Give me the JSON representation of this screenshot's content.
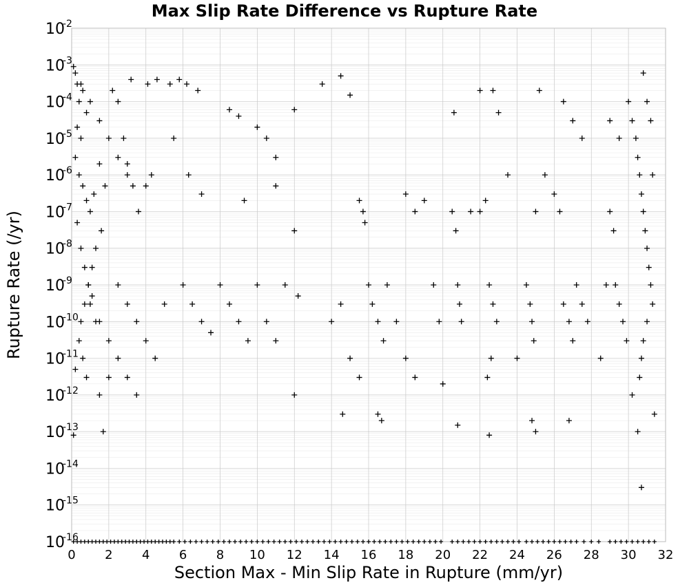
{
  "chart_data": {
    "type": "scatter",
    "title": "Max Slip Rate Difference vs Rupture Rate",
    "xlabel": "Section Max - Min Slip Rate in Rupture (mm/yr)",
    "ylabel": "Rupture Rate (/yr)",
    "xlim": [
      0,
      32
    ],
    "ylim": [
      1e-16,
      0.01
    ],
    "yscale": "log",
    "marker": "plus",
    "marker_color": "#000000",
    "grid": true,
    "x_ticks": [
      "0",
      "2",
      "4",
      "6",
      "8",
      "10",
      "12",
      "14",
      "16",
      "18",
      "20",
      "22",
      "24",
      "26",
      "28",
      "30",
      "32"
    ],
    "y_ticks": [
      {
        "base": "10",
        "exp": "-2"
      },
      {
        "base": "10",
        "exp": "-3"
      },
      {
        "base": "10",
        "exp": "-4"
      },
      {
        "base": "10",
        "exp": "-5"
      },
      {
        "base": "10",
        "exp": "-6"
      },
      {
        "base": "10",
        "exp": "-7"
      },
      {
        "base": "10",
        "exp": "-8"
      },
      {
        "base": "10",
        "exp": "-9"
      },
      {
        "base": "10",
        "exp": "-10"
      },
      {
        "base": "10",
        "exp": "-11"
      },
      {
        "base": "10",
        "exp": "-12"
      },
      {
        "base": "10",
        "exp": "-13"
      },
      {
        "base": "10",
        "exp": "-14"
      },
      {
        "base": "10",
        "exp": "-15"
      },
      {
        "base": "10",
        "exp": "-16"
      }
    ],
    "points": [
      [
        0.1,
        0.0009
      ],
      [
        0.2,
        0.0006
      ],
      [
        0.3,
        0.0003
      ],
      [
        0.4,
        0.0001
      ],
      [
        0.6,
        0.0002
      ],
      [
        0.8,
        5e-05
      ],
      [
        0.3,
        2e-05
      ],
      [
        0.5,
        1e-05
      ],
      [
        0.2,
        3e-06
      ],
      [
        0.4,
        1e-06
      ],
      [
        0.6,
        5e-07
      ],
      [
        0.8,
        2e-07
      ],
      [
        1.0,
        1e-07
      ],
      [
        1.2,
        3e-07
      ],
      [
        1.5,
        2e-06
      ],
      [
        1.8,
        5e-07
      ],
      [
        0.3,
        5e-08
      ],
      [
        0.5,
        1e-08
      ],
      [
        0.7,
        3e-09
      ],
      [
        0.9,
        1e-09
      ],
      [
        1.1,
        5e-10
      ],
      [
        1.3,
        1e-10
      ],
      [
        0.4,
        3e-11
      ],
      [
        0.6,
        1e-11
      ],
      [
        0.8,
        3e-12
      ],
      [
        0.2,
        5e-12
      ],
      [
        0.1,
        8e-14
      ],
      [
        1.5,
        1e-12
      ],
      [
        1.7,
        1e-13
      ],
      [
        2.0,
        3e-12
      ],
      [
        2.2,
        0.0002
      ],
      [
        2.5,
        0.0001
      ],
      [
        2.8,
        1e-05
      ],
      [
        3.0,
        2e-06
      ],
      [
        3.3,
        5e-07
      ],
      [
        3.6,
        1e-07
      ],
      [
        4.0,
        5e-07
      ],
      [
        4.3,
        1e-06
      ],
      [
        2.5,
        1e-09
      ],
      [
        3.0,
        3e-10
      ],
      [
        3.5,
        1e-10
      ],
      [
        4.0,
        3e-11
      ],
      [
        4.5,
        1e-11
      ],
      [
        5.0,
        3e-10
      ],
      [
        3.2,
        0.0004
      ],
      [
        4.1,
        0.0003
      ],
      [
        4.6,
        0.0004
      ],
      [
        5.3,
        0.0003
      ],
      [
        5.8,
        0.0004
      ],
      [
        6.2,
        0.0003
      ],
      [
        6.8,
        0.0002
      ],
      [
        5.5,
        1e-05
      ],
      [
        6.3,
        1e-06
      ],
      [
        7.0,
        3e-07
      ],
      [
        6.0,
        1e-09
      ],
      [
        6.5,
        3e-10
      ],
      [
        7.0,
        1e-10
      ],
      [
        7.5,
        5e-11
      ],
      [
        8.0,
        1e-09
      ],
      [
        8.5,
        3e-10
      ],
      [
        9.0,
        1e-10
      ],
      [
        9.3,
        2e-07
      ],
      [
        9.5,
        3e-11
      ],
      [
        10.0,
        1e-09
      ],
      [
        10.5,
        1e-10
      ],
      [
        11.0,
        5e-07
      ],
      [
        11.0,
        3e-11
      ],
      [
        11.5,
        1e-09
      ],
      [
        12.0,
        3e-08
      ],
      [
        12.2,
        5e-10
      ],
      [
        12.0,
        1e-12
      ],
      [
        8.5,
        6e-05
      ],
      [
        9.0,
        4e-05
      ],
      [
        10.0,
        2e-05
      ],
      [
        10.5,
        1e-05
      ],
      [
        11.0,
        3e-06
      ],
      [
        12.0,
        6e-05
      ],
      [
        13.5,
        0.0003
      ],
      [
        14.5,
        0.0005
      ],
      [
        15.0,
        0.00015
      ],
      [
        15.5,
        2e-07
      ],
      [
        15.7,
        1e-07
      ],
      [
        15.8,
        5e-08
      ],
      [
        16.0,
        1e-09
      ],
      [
        16.2,
        3e-10
      ],
      [
        16.5,
        1e-10
      ],
      [
        16.8,
        3e-11
      ],
      [
        14.0,
        1e-10
      ],
      [
        14.5,
        3e-10
      ],
      [
        15.0,
        1e-11
      ],
      [
        15.5,
        3e-12
      ],
      [
        14.6,
        3e-13
      ],
      [
        16.5,
        3e-13
      ],
      [
        16.7,
        2e-13
      ],
      [
        17.0,
        1e-09
      ],
      [
        17.5,
        1e-10
      ],
      [
        18.0,
        3e-07
      ],
      [
        18.5,
        1e-07
      ],
      [
        19.0,
        2e-07
      ],
      [
        19.5,
        1e-09
      ],
      [
        18.0,
        1e-11
      ],
      [
        18.5,
        3e-12
      ],
      [
        19.8,
        1e-10
      ],
      [
        20.0,
        2e-12
      ],
      [
        20.5,
        1e-07
      ],
      [
        20.7,
        3e-08
      ],
      [
        20.8,
        1e-09
      ],
      [
        20.9,
        3e-10
      ],
      [
        21.0,
        1e-10
      ],
      [
        20.8,
        1.5e-13
      ],
      [
        20.6,
        5e-05
      ],
      [
        21.5,
        1e-07
      ],
      [
        22.0,
        1e-07
      ],
      [
        22.3,
        2e-07
      ],
      [
        22.5,
        1e-09
      ],
      [
        22.7,
        3e-10
      ],
      [
        22.9,
        1e-10
      ],
      [
        22.6,
        1e-11
      ],
      [
        22.4,
        3e-12
      ],
      [
        22.5,
        8e-14
      ],
      [
        22.0,
        0.0002
      ],
      [
        22.7,
        0.0002
      ],
      [
        23.0,
        5e-05
      ],
      [
        23.5,
        1e-06
      ],
      [
        24.0,
        1e-11
      ],
      [
        24.5,
        1e-09
      ],
      [
        24.7,
        3e-10
      ],
      [
        24.8,
        1e-10
      ],
      [
        24.9,
        3e-11
      ],
      [
        25.0,
        1e-07
      ],
      [
        25.2,
        0.0002
      ],
      [
        24.8,
        2e-13
      ],
      [
        25.0,
        1e-13
      ],
      [
        25.5,
        1e-06
      ],
      [
        26.0,
        3e-07
      ],
      [
        26.3,
        1e-07
      ],
      [
        26.5,
        3e-10
      ],
      [
        26.8,
        1e-10
      ],
      [
        27.0,
        3e-11
      ],
      [
        27.2,
        1e-09
      ],
      [
        27.5,
        3e-10
      ],
      [
        27.8,
        1e-10
      ],
      [
        26.5,
        0.0001
      ],
      [
        27.0,
        3e-05
      ],
      [
        27.5,
        1e-05
      ],
      [
        26.8,
        2e-13
      ],
      [
        28.5,
        1e-11
      ],
      [
        28.8,
        1e-09
      ],
      [
        29.0,
        1e-07
      ],
      [
        29.2,
        3e-08
      ],
      [
        29.3,
        1e-09
      ],
      [
        29.5,
        3e-10
      ],
      [
        29.7,
        1e-10
      ],
      [
        29.9,
        3e-11
      ],
      [
        29.0,
        3e-05
      ],
      [
        29.5,
        1e-05
      ],
      [
        30.0,
        0.0001
      ],
      [
        30.2,
        3e-05
      ],
      [
        30.4,
        1e-05
      ],
      [
        30.5,
        3e-06
      ],
      [
        30.6,
        1e-06
      ],
      [
        30.7,
        3e-07
      ],
      [
        30.8,
        1e-07
      ],
      [
        30.9,
        3e-08
      ],
      [
        31.0,
        1e-08
      ],
      [
        31.1,
        3e-09
      ],
      [
        31.2,
        1e-09
      ],
      [
        31.3,
        3e-10
      ],
      [
        31.0,
        1e-10
      ],
      [
        30.8,
        3e-11
      ],
      [
        30.7,
        1e-11
      ],
      [
        30.6,
        3e-12
      ],
      [
        30.5,
        1e-13
      ],
      [
        30.7,
        3e-15
      ],
      [
        30.8,
        0.0006
      ],
      [
        31.0,
        0.0001
      ],
      [
        31.2,
        3e-05
      ],
      [
        31.3,
        1e-06
      ],
      [
        30.2,
        1e-12
      ],
      [
        31.4,
        3e-13
      ],
      [
        0.5,
        0.0003
      ],
      [
        1.0,
        0.0001
      ],
      [
        1.5,
        3e-05
      ],
      [
        2.0,
        1e-05
      ],
      [
        2.5,
        3e-06
      ],
      [
        3.0,
        1e-06
      ],
      [
        1.0,
        3e-10
      ],
      [
        1.5,
        1e-10
      ],
      [
        2.0,
        3e-11
      ],
      [
        2.5,
        1e-11
      ],
      [
        3.0,
        3e-12
      ],
      [
        3.5,
        1e-12
      ],
      [
        0.5,
        1e-10
      ],
      [
        0.7,
        3e-10
      ],
      [
        0.9,
        1e-09
      ],
      [
        1.1,
        3e-09
      ],
      [
        1.3,
        1e-08
      ],
      [
        1.6,
        3e-08
      ]
    ],
    "zero_rate_x": [
      0.1,
      0.3,
      0.5,
      0.7,
      0.9,
      1.1,
      1.3,
      1.5,
      1.7,
      1.9,
      2.1,
      2.3,
      2.5,
      2.7,
      2.9,
      3.1,
      3.3,
      3.5,
      3.7,
      3.9,
      4.1,
      4.3,
      4.5,
      4.7,
      4.9,
      5.1,
      5.3,
      5.5,
      5.8,
      6.1,
      6.4,
      6.7,
      7.0,
      7.3,
      7.6,
      7.9,
      8.2,
      8.5,
      8.8,
      9.1,
      9.4,
      9.7,
      10.0,
      10.3,
      10.6,
      10.9,
      11.2,
      11.5,
      11.8,
      12.1,
      12.4,
      12.7,
      13.0,
      13.3,
      13.6,
      13.9,
      14.2,
      14.5,
      14.8,
      15.1,
      15.4,
      15.7,
      16.0,
      16.3,
      16.6,
      16.9,
      17.2,
      17.5,
      17.8,
      18.1,
      18.4,
      18.7,
      19.0,
      19.3,
      19.6,
      19.9,
      20.5,
      20.8,
      21.1,
      21.4,
      21.7,
      22.0,
      22.3,
      22.6,
      22.9,
      23.2,
      23.5,
      23.8,
      24.1,
      24.5,
      24.8,
      25.1,
      25.4,
      25.7,
      26.0,
      26.3,
      26.6,
      26.9,
      27.2,
      27.6,
      28.0,
      28.4,
      29.0,
      29.3,
      29.6,
      29.9,
      30.2,
      30.5,
      30.8,
      31.1,
      31.4
    ]
  }
}
